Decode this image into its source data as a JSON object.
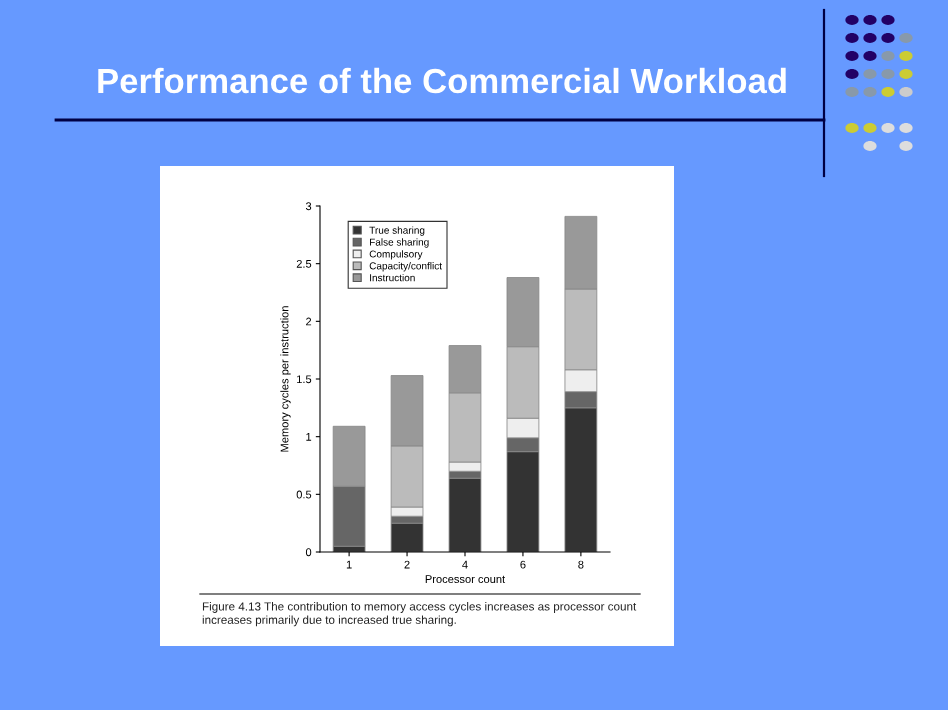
{
  "chart_data": {
    "type": "bar",
    "stacked": true,
    "title": "Performance of the Commercial Workload",
    "xlabel": "Processor count",
    "ylabel": "Memory cycles per instruction",
    "categories": [
      "1",
      "2",
      "4",
      "6",
      "8"
    ],
    "series": [
      {
        "name": "True sharing",
        "color": "#333333",
        "values": [
          0.05,
          0.25,
          0.64,
          0.87,
          1.25
        ]
      },
      {
        "name": "False sharing",
        "color": "#666666",
        "values": [
          0.52,
          0.06,
          0.06,
          0.12,
          0.14
        ]
      },
      {
        "name": "Compulsory",
        "color": "#eeeeee",
        "values": [
          0,
          0.08,
          0.08,
          0.17,
          0.19
        ]
      },
      {
        "name": "Capacity/conflict",
        "color": "#bbbbbb",
        "values": [
          0,
          0.53,
          0.6,
          0.62,
          0.7
        ]
      },
      {
        "name": "Instruction",
        "color": "#999999",
        "values": [
          0.52,
          0.61,
          0.41,
          0.6,
          0.63
        ]
      }
    ],
    "ylim": [
      0,
      3
    ],
    "yticks": [
      0,
      0.5,
      1,
      1.5,
      2,
      2.5,
      3
    ],
    "grid": false,
    "legend": "top left",
    "annotations": [
      "Figure 4.13 The contribution to memory access cycles increases as processor count\nincreases primarily due to increased true sharing."
    ]
  }
}
